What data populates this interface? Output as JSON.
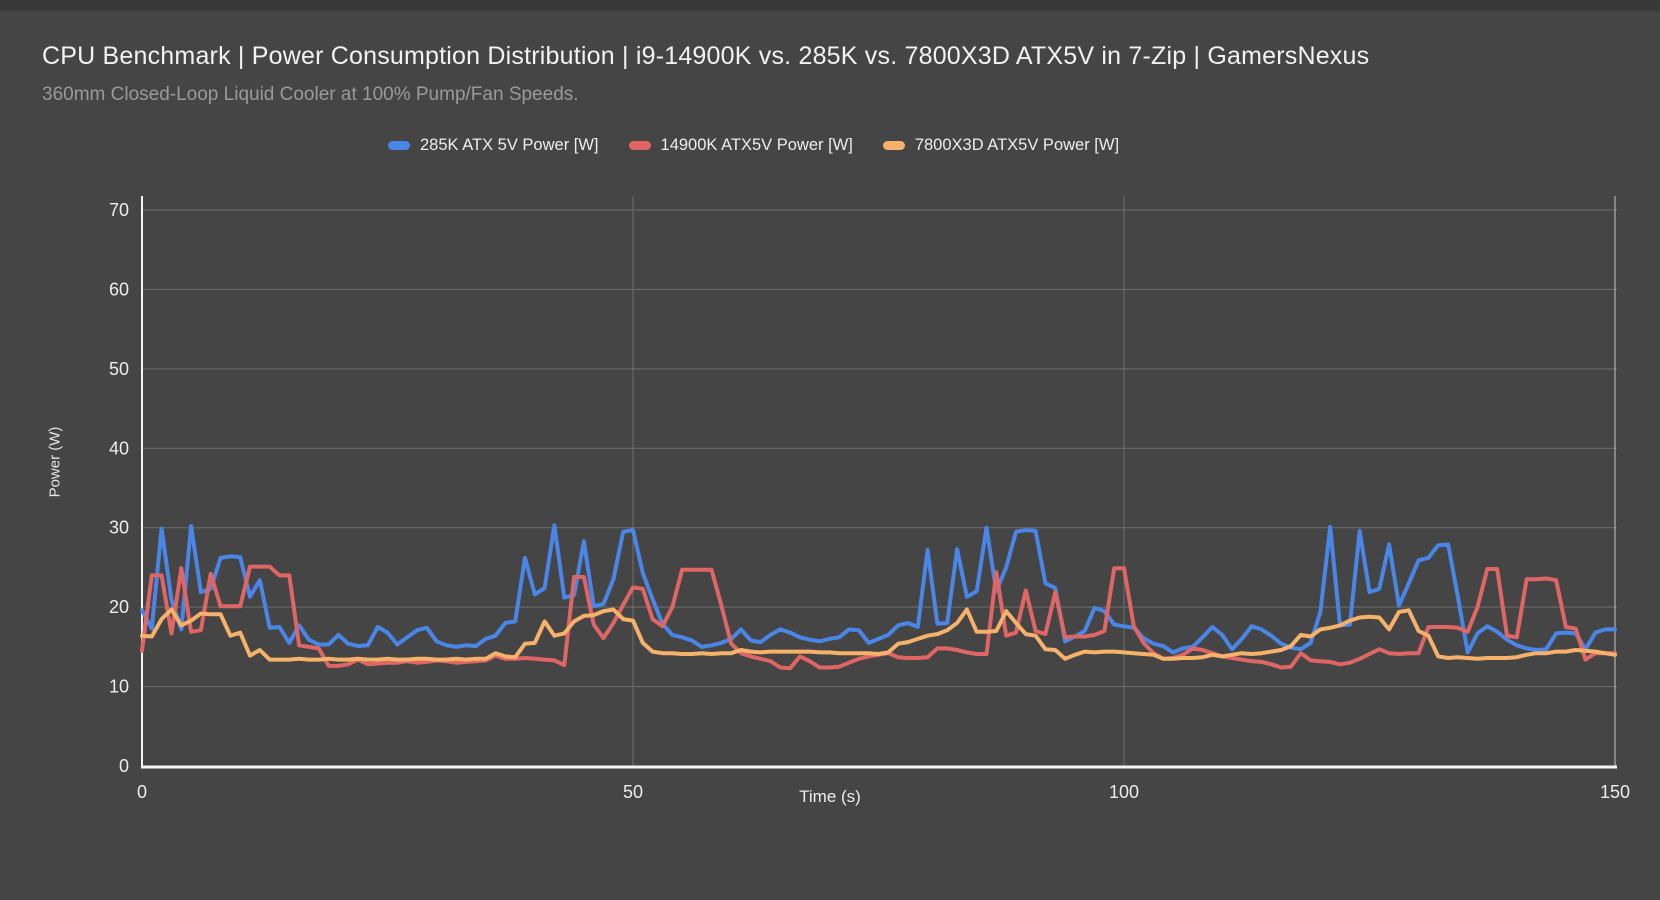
{
  "page": {
    "title": "CPU Benchmark | Power Consumption Distribution | i9-14900K vs. 285K vs. 7800X3D ATX5V in 7-Zip | GamersNexus",
    "subtitle": "360mm Closed-Loop Liquid Cooler at 100% Pump/Fan Speeds."
  },
  "colors": {
    "background": "#454545",
    "top_strip": "#393939",
    "grid": "#6e6e6e",
    "grid_bright": "#c9c9c9",
    "axis": "#f5f5f5",
    "text_primary": "#f2f2f2",
    "text_muted": "#9a9a9a",
    "tick_label": "#ededed",
    "series_285k": "#4a86e8",
    "series_14900k": "#e06666",
    "series_7800x3d": "#f6b26b"
  },
  "legend": {
    "position": "top",
    "items": [
      {
        "label": "285K ATX 5V Power [W]",
        "color": "#4a86e8"
      },
      {
        "label": "14900K ATX5V Power [W]",
        "color": "#e06666"
      },
      {
        "label": "7800X3D ATX5V Power [W]",
        "color": "#f6b26b"
      }
    ]
  },
  "chart_data": {
    "type": "line",
    "title": "CPU Benchmark | Power Consumption Distribution | i9-14900K vs. 285K vs. 7800X3D ATX5V in 7-Zip | GamersNexus",
    "subtitle": "360mm Closed-Loop Liquid Cooler at 100% Pump/Fan Speeds.",
    "xlabel": "Time (s)",
    "ylabel": "Power (W)",
    "xlim": [
      0,
      150
    ],
    "ylim": [
      0,
      70
    ],
    "x_ticks": [
      0,
      50,
      100,
      150
    ],
    "y_ticks": [
      0,
      10,
      20,
      30,
      40,
      50,
      60,
      70
    ],
    "grid": true,
    "legend_position": "top",
    "x": [
      0,
      1,
      2,
      3,
      4,
      5,
      6,
      7,
      8,
      9,
      10,
      11,
      12,
      13,
      14,
      15,
      16,
      17,
      18,
      19,
      20,
      21,
      22,
      23,
      24,
      25,
      26,
      27,
      28,
      29,
      30,
      31,
      32,
      33,
      34,
      35,
      36,
      37,
      38,
      39,
      40,
      41,
      42,
      43,
      44,
      45,
      46,
      47,
      48,
      49,
      50,
      51,
      52,
      53,
      54,
      55,
      56,
      57,
      58,
      59,
      60,
      61,
      62,
      63,
      64,
      65,
      66,
      67,
      68,
      69,
      70,
      71,
      72,
      73,
      74,
      75,
      76,
      77,
      78,
      79,
      80,
      81,
      82,
      83,
      84,
      85,
      86,
      87,
      88,
      89,
      90,
      91,
      92,
      93,
      94,
      95,
      96,
      97,
      98,
      99,
      100,
      101,
      102,
      103,
      104,
      105,
      106,
      107,
      108,
      109,
      110,
      111,
      112,
      113,
      114,
      115,
      116,
      117,
      118,
      119,
      120,
      121,
      122,
      123,
      124,
      125,
      126,
      127,
      128,
      129,
      130,
      131,
      132,
      133,
      134,
      135,
      136,
      137,
      138,
      139,
      140,
      141,
      142,
      143,
      144,
      145,
      146,
      147,
      148,
      149,
      150
    ],
    "series": [
      {
        "name": "285K ATX 5V Power [W]",
        "color": "#4a86e8",
        "values": [
          19.6,
          17.3,
          29.9,
          20.9,
          17.2,
          30.2,
          21.9,
          22.3,
          26.2,
          26.4,
          26.3,
          21.3,
          23.4,
          17.4,
          17.5,
          15.5,
          17.7,
          15.9,
          15.3,
          15.3,
          16.5,
          15.4,
          15.1,
          15.2,
          17.5,
          16.8,
          15.3,
          16.2,
          17.1,
          17.4,
          15.7,
          15.2,
          15.0,
          15.2,
          15.1,
          16.0,
          16.4,
          18.0,
          18.2,
          26.2,
          21.6,
          22.4,
          30.3,
          21.2,
          21.5,
          28.3,
          20.1,
          20.4,
          23.5,
          29.5,
          29.7,
          24.3,
          21.0,
          17.9,
          16.5,
          16.2,
          15.8,
          15.0,
          15.2,
          15.5,
          16.0,
          17.2,
          15.8,
          15.6,
          16.5,
          17.2,
          16.8,
          16.2,
          15.9,
          15.7,
          16.0,
          16.2,
          17.2,
          17.1,
          15.5,
          16.0,
          16.5,
          17.7,
          18.0,
          17.5,
          27.2,
          17.9,
          18.0,
          27.3,
          21.3,
          22.0,
          30.0,
          22.0,
          25.0,
          29.5,
          29.7,
          29.6,
          23.0,
          22.4,
          15.7,
          16.3,
          17.0,
          19.9,
          19.5,
          17.8,
          17.6,
          17.4,
          16.1,
          15.4,
          15.1,
          14.3,
          14.8,
          15.0,
          16.2,
          17.5,
          16.5,
          14.7,
          16.0,
          17.6,
          17.2,
          16.4,
          15.4,
          14.9,
          14.7,
          15.5,
          19.4,
          30.1,
          17.7,
          17.8,
          29.6,
          21.9,
          22.3,
          27.9,
          20.2,
          23.0,
          25.9,
          26.2,
          27.8,
          27.9,
          21.3,
          14.3,
          16.7,
          17.6,
          16.9,
          15.9,
          15.2,
          14.8,
          14.6,
          14.7,
          16.7,
          16.8,
          16.7,
          14.7,
          16.8,
          17.2,
          17.2
        ]
      },
      {
        "name": "14900K ATX5V Power [W]",
        "color": "#e06666",
        "values": [
          14.5,
          24.0,
          24.0,
          16.7,
          24.9,
          16.9,
          17.1,
          24.2,
          20.1,
          20.1,
          20.1,
          25.1,
          25.1,
          25.1,
          24.0,
          24.0,
          15.2,
          15.0,
          14.8,
          12.6,
          12.6,
          12.8,
          13.4,
          12.8,
          12.9,
          13.0,
          13.0,
          13.2,
          13.0,
          13.1,
          13.3,
          13.2,
          13.0,
          13.1,
          13.2,
          13.3,
          13.9,
          13.5,
          13.5,
          13.6,
          13.5,
          13.4,
          13.3,
          12.7,
          23.8,
          23.8,
          17.8,
          16.1,
          18.0,
          20.3,
          22.5,
          22.3,
          18.5,
          17.6,
          20.0,
          24.7,
          24.7,
          24.7,
          24.7,
          20.2,
          15.4,
          14.2,
          13.8,
          13.5,
          13.2,
          12.4,
          12.3,
          13.8,
          13.2,
          12.4,
          12.4,
          12.5,
          13.0,
          13.5,
          13.8,
          14.0,
          14.2,
          13.7,
          13.6,
          13.6,
          13.7,
          14.8,
          14.8,
          14.6,
          14.3,
          14.1,
          14.1,
          24.4,
          16.4,
          16.8,
          22.1,
          17.0,
          16.6,
          21.9,
          16.2,
          16.3,
          16.3,
          16.5,
          17.0,
          24.9,
          24.9,
          17.6,
          15.5,
          14.2,
          13.5,
          13.6,
          14.0,
          14.8,
          14.6,
          14.2,
          13.8,
          13.6,
          13.4,
          13.2,
          13.1,
          12.8,
          12.4,
          12.5,
          14.2,
          13.3,
          13.2,
          13.1,
          12.8,
          13.0,
          13.5,
          14.1,
          14.7,
          14.2,
          14.1,
          14.2,
          14.2,
          17.5,
          17.5,
          17.5,
          17.4,
          16.9,
          20.0,
          24.8,
          24.8,
          16.4,
          16.2,
          23.5,
          23.5,
          23.6,
          23.4,
          17.5,
          17.3,
          13.4,
          14.2,
          14.2,
          14.2
        ]
      },
      {
        "name": "7800X3D ATX5V Power [W]",
        "color": "#f6b26b",
        "values": [
          16.4,
          16.3,
          18.5,
          19.7,
          17.7,
          18.3,
          19.2,
          19.1,
          19.1,
          16.4,
          16.8,
          13.9,
          14.6,
          13.4,
          13.4,
          13.4,
          13.5,
          13.4,
          13.4,
          13.5,
          13.4,
          13.4,
          13.5,
          13.4,
          13.4,
          13.5,
          13.4,
          13.4,
          13.5,
          13.5,
          13.4,
          13.4,
          13.5,
          13.4,
          13.5,
          13.5,
          14.2,
          13.8,
          13.7,
          15.4,
          15.5,
          18.2,
          16.4,
          16.7,
          18.2,
          18.9,
          19.0,
          19.5,
          19.7,
          18.5,
          18.3,
          15.5,
          14.4,
          14.2,
          14.2,
          14.1,
          14.1,
          14.2,
          14.1,
          14.2,
          14.2,
          14.6,
          14.4,
          14.3,
          14.4,
          14.4,
          14.4,
          14.4,
          14.4,
          14.3,
          14.3,
          14.2,
          14.2,
          14.2,
          14.2,
          14.1,
          14.3,
          15.4,
          15.6,
          16.0,
          16.4,
          16.6,
          17.1,
          18.0,
          19.7,
          16.9,
          16.9,
          17.0,
          19.5,
          18.0,
          16.6,
          16.4,
          14.7,
          14.6,
          13.5,
          14.0,
          14.4,
          14.3,
          14.4,
          14.4,
          14.3,
          14.2,
          14.1,
          14.0,
          13.5,
          13.5,
          13.6,
          13.6,
          13.7,
          14.0,
          13.8,
          14.0,
          14.2,
          14.1,
          14.2,
          14.4,
          14.6,
          15.1,
          16.5,
          16.3,
          17.2,
          17.4,
          17.7,
          18.3,
          18.7,
          18.8,
          18.7,
          17.2,
          19.4,
          19.6,
          17.0,
          16.4,
          13.8,
          13.6,
          13.7,
          13.6,
          13.5,
          13.6,
          13.6,
          13.6,
          13.7,
          14.0,
          14.2,
          14.2,
          14.4,
          14.4,
          14.6,
          14.5,
          14.4,
          14.2,
          14.0
        ]
      }
    ]
  }
}
